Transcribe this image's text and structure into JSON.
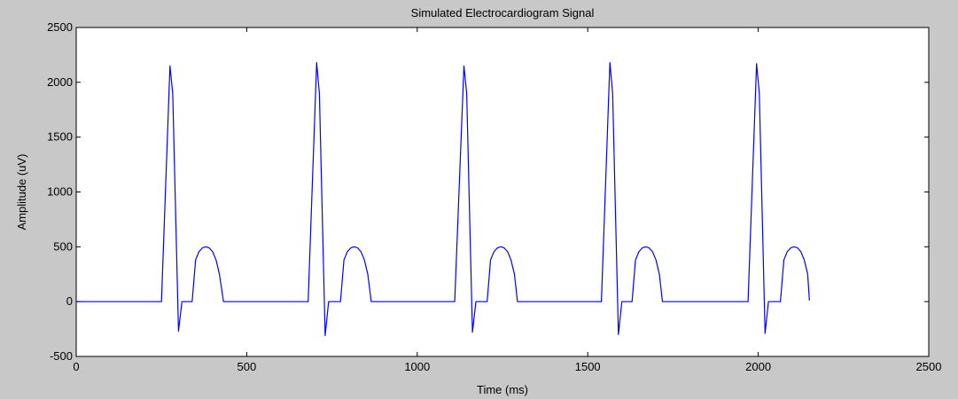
{
  "chart_data": {
    "type": "line",
    "title": "Simulated Electrocardiogram Signal",
    "xlabel": "Time (ms)",
    "ylabel": "Amplitude (uV)",
    "xlim": [
      0,
      2500
    ],
    "ylim": [
      -500,
      2500
    ],
    "xticks": [
      0,
      500,
      1000,
      1500,
      2000,
      2500
    ],
    "xtick_labels": [
      "0",
      "500",
      "1000",
      "1500",
      "2000",
      "2500"
    ],
    "yticks": [
      -500,
      0,
      500,
      1000,
      1500,
      2000,
      2500
    ],
    "ytick_labels": [
      "-500",
      "0",
      "500",
      "1000",
      "1500",
      "2000",
      "2500"
    ],
    "grid": false,
    "legend": "none",
    "series_color": "#0000ff",
    "background_color": "#ffffff",
    "figure_color": "#c8c8c8",
    "series": [
      {
        "x": [
          0,
          250,
          275,
          283,
          300,
          310,
          340,
          350,
          360,
          370,
          380,
          390,
          400,
          410,
          420,
          432,
          433,
          680,
          705,
          713,
          730,
          740,
          775,
          785,
          795,
          805,
          815,
          825,
          835,
          845,
          855,
          865,
          866,
          1110,
          1137,
          1145,
          1162,
          1172,
          1205,
          1215,
          1225,
          1235,
          1245,
          1255,
          1265,
          1275,
          1285,
          1294,
          1295,
          1540,
          1565,
          1573,
          1590,
          1600,
          1630,
          1640,
          1650,
          1660,
          1670,
          1680,
          1690,
          1700,
          1710,
          1719,
          1720,
          1970,
          1995,
          2003,
          2020,
          2030,
          2065,
          2075,
          2085,
          2095,
          2105,
          2115,
          2125,
          2135,
          2145,
          2150
        ],
        "y": [
          0,
          0,
          2150,
          1900,
          -270,
          0,
          0,
          380,
          455,
          490,
          500,
          490,
          455,
          380,
          250,
          0,
          0,
          0,
          2180,
          1900,
          -310,
          0,
          0,
          380,
          455,
          490,
          500,
          490,
          455,
          380,
          250,
          0,
          0,
          0,
          2150,
          1900,
          -280,
          0,
          0,
          380,
          455,
          490,
          500,
          490,
          455,
          380,
          250,
          0,
          0,
          0,
          2180,
          1900,
          -300,
          0,
          0,
          380,
          455,
          490,
          500,
          490,
          455,
          380,
          250,
          0,
          0,
          0,
          2170,
          1900,
          -290,
          0,
          0,
          380,
          455,
          490,
          500,
          490,
          455,
          380,
          250,
          10
        ]
      }
    ]
  }
}
